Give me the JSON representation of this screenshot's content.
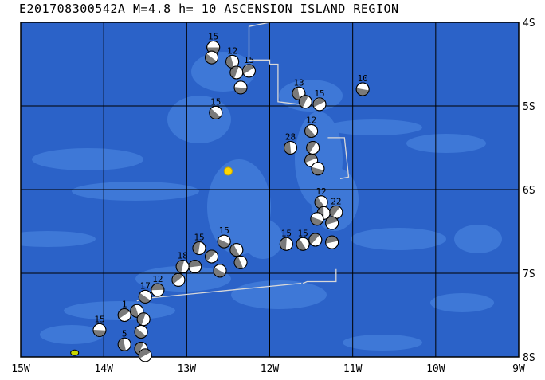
{
  "map": {
    "title": "E201708300542A M=4.8 h= 10 ASCENSION ISLAND REGION",
    "lon_range": [
      -15,
      -9
    ],
    "lat_range": [
      -8,
      -4
    ],
    "x_ticks": [
      {
        "value": -15,
        "label": "15W"
      },
      {
        "value": -14,
        "label": "14W"
      },
      {
        "value": -13,
        "label": "13W"
      },
      {
        "value": -12,
        "label": "12W"
      },
      {
        "value": -11,
        "label": "11W"
      },
      {
        "value": -10,
        "label": "10W"
      },
      {
        "value": -9,
        "label": "9W"
      }
    ],
    "y_ticks": [
      {
        "value": -4,
        "label": "4S"
      },
      {
        "value": -5,
        "label": "5S"
      },
      {
        "value": -6,
        "label": "6S"
      },
      {
        "value": -7,
        "label": "7S"
      },
      {
        "value": -8,
        "label": "8S"
      }
    ],
    "colors": {
      "ocean": "#2b62c8",
      "shallow": "#4580dc",
      "grid": "#000000",
      "plate_boundary": "#d8d8d8",
      "epicenter": "#ffd700",
      "island": "#c8d800"
    },
    "main_event": {
      "lon": -12.5,
      "lat": -5.78
    },
    "island": {
      "lon": -14.35,
      "lat": -7.95
    },
    "plate_boundary": [
      [
        [
          -12.0,
          -4.0
        ],
        [
          -12.25,
          -4.05
        ],
        [
          -12.25,
          -4.45
        ],
        [
          -12.0,
          -4.45
        ],
        [
          -12.0,
          -4.5
        ]
      ],
      [
        [
          -12.0,
          -4.5
        ],
        [
          -11.9,
          -4.5
        ],
        [
          -11.9,
          -4.95
        ],
        [
          -11.65,
          -4.98
        ],
        [
          -11.6,
          -5.0
        ]
      ],
      [
        [
          -11.3,
          -5.38
        ],
        [
          -11.1,
          -5.38
        ],
        [
          -11.05,
          -5.85
        ],
        [
          -11.15,
          -5.87
        ]
      ],
      [
        [
          -11.2,
          -6.95
        ],
        [
          -11.2,
          -7.1
        ],
        [
          -11.55,
          -7.1
        ],
        [
          -11.6,
          -7.12
        ]
      ],
      [
        [
          -11.62,
          -7.12
        ],
        [
          -13.5,
          -7.3
        ],
        [
          -13.6,
          -7.33
        ]
      ]
    ],
    "events": [
      {
        "lon": -12.68,
        "lat": -4.3,
        "label": "15"
      },
      {
        "lon": -12.7,
        "lat": -4.42,
        "label": ""
      },
      {
        "lon": -12.45,
        "lat": -4.47,
        "label": "12"
      },
      {
        "lon": -12.4,
        "lat": -4.6,
        "label": ""
      },
      {
        "lon": -12.25,
        "lat": -4.58,
        "label": "15"
      },
      {
        "lon": -12.35,
        "lat": -4.78,
        "label": ""
      },
      {
        "lon": -12.65,
        "lat": -5.08,
        "label": "15"
      },
      {
        "lon": -11.65,
        "lat": -4.85,
        "label": "13"
      },
      {
        "lon": -11.57,
        "lat": -4.95,
        "label": ""
      },
      {
        "lon": -11.4,
        "lat": -4.98,
        "label": "15"
      },
      {
        "lon": -10.88,
        "lat": -4.8,
        "label": "10"
      },
      {
        "lon": -11.5,
        "lat": -5.3,
        "label": "12"
      },
      {
        "lon": -11.75,
        "lat": -5.5,
        "label": "28"
      },
      {
        "lon": -11.48,
        "lat": -5.5,
        "label": ""
      },
      {
        "lon": -11.5,
        "lat": -5.65,
        "label": ""
      },
      {
        "lon": -11.42,
        "lat": -5.75,
        "label": ""
      },
      {
        "lon": -11.38,
        "lat": -6.15,
        "label": "12"
      },
      {
        "lon": -11.35,
        "lat": -6.28,
        "label": ""
      },
      {
        "lon": -11.2,
        "lat": -6.27,
        "label": "22"
      },
      {
        "lon": -11.25,
        "lat": -6.4,
        "label": ""
      },
      {
        "lon": -11.43,
        "lat": -6.35,
        "label": ""
      },
      {
        "lon": -11.6,
        "lat": -6.65,
        "label": "15"
      },
      {
        "lon": -11.8,
        "lat": -6.65,
        "label": "15"
      },
      {
        "lon": -11.45,
        "lat": -6.6,
        "label": ""
      },
      {
        "lon": -11.25,
        "lat": -6.63,
        "label": ""
      },
      {
        "lon": -12.55,
        "lat": -6.62,
        "label": "15"
      },
      {
        "lon": -12.4,
        "lat": -6.72,
        "label": ""
      },
      {
        "lon": -12.85,
        "lat": -6.7,
        "label": "15"
      },
      {
        "lon": -12.7,
        "lat": -6.8,
        "label": ""
      },
      {
        "lon": -12.9,
        "lat": -6.92,
        "label": ""
      },
      {
        "lon": -12.6,
        "lat": -6.97,
        "label": ""
      },
      {
        "lon": -12.35,
        "lat": -6.87,
        "label": ""
      },
      {
        "lon": -13.05,
        "lat": -6.92,
        "label": "18"
      },
      {
        "lon": -13.1,
        "lat": -7.08,
        "label": ""
      },
      {
        "lon": -13.35,
        "lat": -7.2,
        "label": "12"
      },
      {
        "lon": -13.5,
        "lat": -7.28,
        "label": "17"
      },
      {
        "lon": -13.6,
        "lat": -7.45,
        "label": ""
      },
      {
        "lon": -13.52,
        "lat": -7.55,
        "label": ""
      },
      {
        "lon": -13.75,
        "lat": -7.5,
        "label": "1"
      },
      {
        "lon": -14.05,
        "lat": -7.68,
        "label": "15"
      },
      {
        "lon": -13.55,
        "lat": -7.7,
        "label": ""
      },
      {
        "lon": -13.75,
        "lat": -7.85,
        "label": "5"
      },
      {
        "lon": -13.55,
        "lat": -7.9,
        "label": ""
      },
      {
        "lon": -13.5,
        "lat": -7.98,
        "label": ""
      }
    ]
  }
}
